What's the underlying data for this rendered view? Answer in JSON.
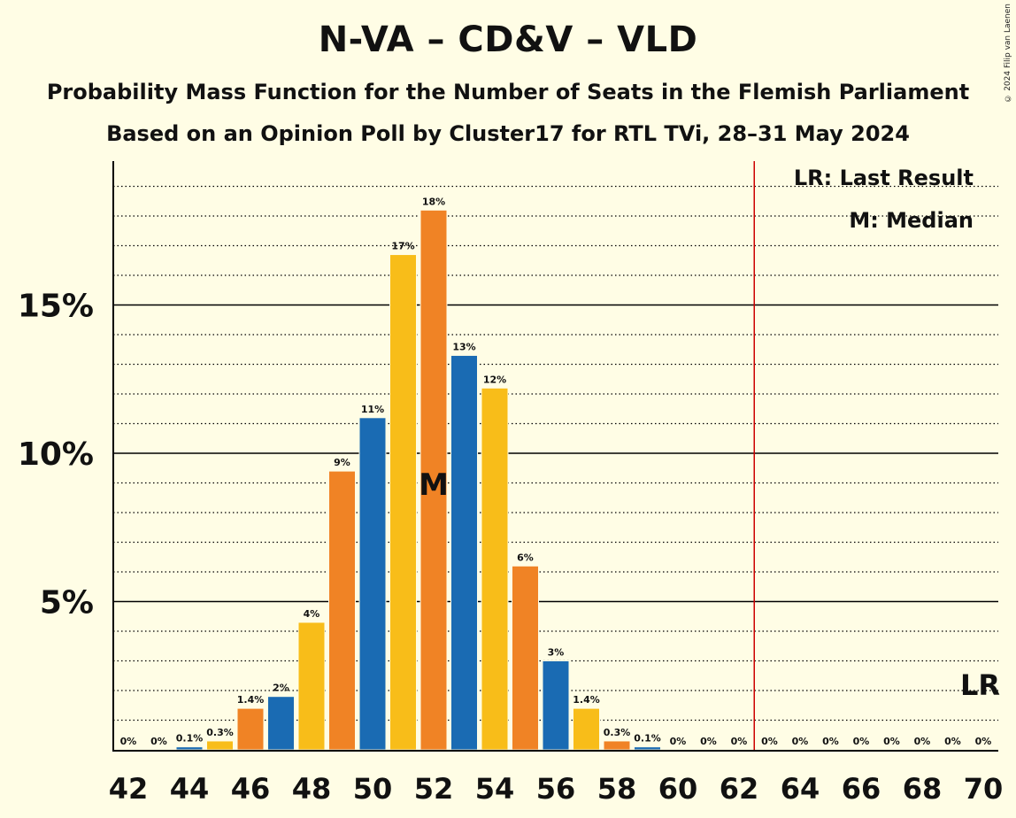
{
  "header": {
    "title": "N-VA – CD&V – VLD",
    "subtitle1": "Probability Mass Function for the Number of Seats in the Flemish Parliament",
    "subtitle2": "Based on an Opinion Poll by Cluster17 for RTL TVi, 28–31 May 2024",
    "copyright": "© 2024 Filip van Laenen"
  },
  "legend": {
    "lr": "LR: Last Result",
    "m": "M: Median"
  },
  "colors": {
    "background": "#FFFDE5",
    "blue": "#1A6BB3",
    "yellow": "#F8BD19",
    "orange": "#F08325",
    "last_result_line": "#CC0000"
  },
  "chart_data": {
    "type": "bar",
    "x": [
      42,
      43,
      44,
      45,
      46,
      47,
      48,
      49,
      50,
      51,
      52,
      53,
      54,
      55,
      56,
      57,
      58,
      59,
      60,
      61,
      62,
      63,
      64,
      65,
      66,
      67,
      68,
      69,
      70
    ],
    "values": [
      0,
      0,
      0.1,
      0.3,
      1.4,
      1.8,
      4.3,
      9.4,
      11.2,
      16.7,
      18.2,
      13.3,
      12.2,
      6.2,
      3.0,
      1.4,
      0.3,
      0.1,
      0,
      0,
      0,
      0,
      0,
      0,
      0,
      0,
      0,
      0,
      0
    ],
    "labels": [
      "0%",
      "0%",
      "0.1%",
      "0.3%",
      "1.4%",
      "2%",
      "4%",
      "9%",
      "11%",
      "17%",
      "18%",
      "13%",
      "12%",
      "6%",
      "3%",
      "1.4%",
      "0.3%",
      "0.1%",
      "0%",
      "0%",
      "0%",
      "0%",
      "0%",
      "0%",
      "0%",
      "0%",
      "0%",
      "0%",
      "0%"
    ],
    "colors": [
      "orange",
      "yellow",
      "blue",
      "yellow",
      "orange",
      "blue",
      "yellow",
      "orange",
      "blue",
      "yellow",
      "orange",
      "blue",
      "yellow",
      "orange",
      "blue",
      "yellow",
      "orange",
      "blue",
      "yellow",
      "orange",
      "blue",
      "yellow",
      "orange",
      "blue",
      "yellow",
      "orange",
      "blue",
      "yellow",
      "orange"
    ],
    "x_tick_labels": [
      "42",
      "44",
      "46",
      "48",
      "50",
      "52",
      "54",
      "56",
      "58",
      "60",
      "62",
      "64",
      "66",
      "68",
      "70"
    ],
    "y_ticks": [
      5,
      10,
      15
    ],
    "y_tick_labels": [
      "5%",
      "10%",
      "15%"
    ],
    "ylim": [
      0,
      19.75
    ],
    "median": 52,
    "median_label": "M",
    "last_result": 62.5,
    "last_result_label": "LR",
    "grid": "dotted minor lines every 1%, solid major lines every 5%"
  }
}
